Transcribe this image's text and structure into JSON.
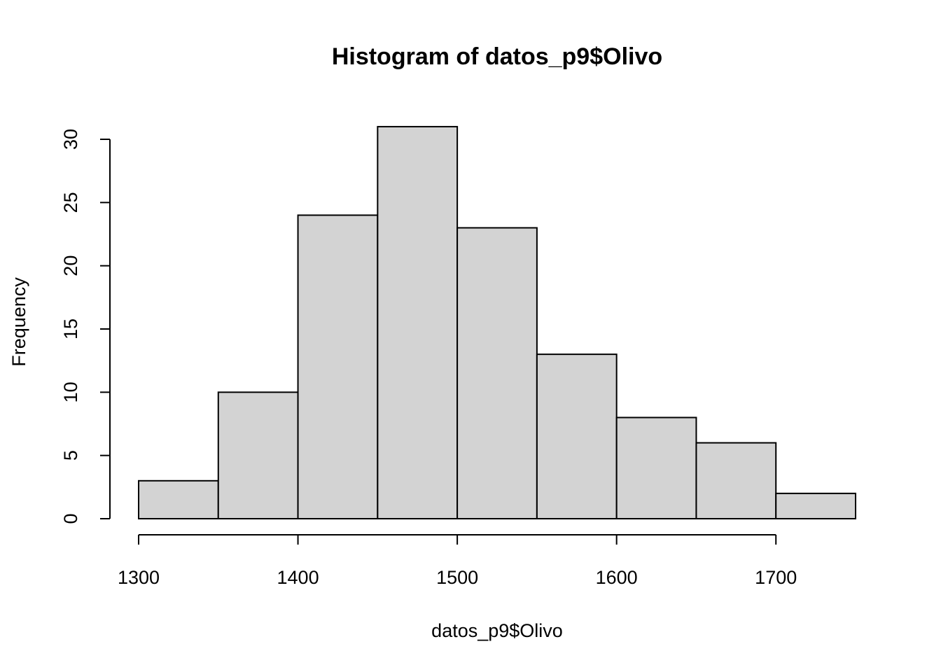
{
  "chart_data": {
    "type": "bar",
    "title": "Histogram of datos_p9$Olivo",
    "xlabel": "datos_p9$Olivo",
    "ylabel": "Frequency",
    "bins": [
      {
        "start": 1300,
        "end": 1350,
        "count": 3
      },
      {
        "start": 1350,
        "end": 1400,
        "count": 10
      },
      {
        "start": 1400,
        "end": 1450,
        "count": 24
      },
      {
        "start": 1450,
        "end": 1500,
        "count": 31
      },
      {
        "start": 1500,
        "end": 1550,
        "count": 23
      },
      {
        "start": 1550,
        "end": 1600,
        "count": 13
      },
      {
        "start": 1600,
        "end": 1650,
        "count": 8
      },
      {
        "start": 1650,
        "end": 1700,
        "count": 6
      },
      {
        "start": 1700,
        "end": 1750,
        "count": 2
      }
    ],
    "xlim": [
      1300,
      1750
    ],
    "ylim": [
      0,
      30
    ],
    "x_ticks": [
      1300,
      1400,
      1500,
      1600,
      1700
    ],
    "y_ticks": [
      0,
      5,
      10,
      15,
      20,
      25,
      30
    ],
    "grid": false,
    "bar_color": "#d3d3d3",
    "edge_color": "#000000"
  }
}
